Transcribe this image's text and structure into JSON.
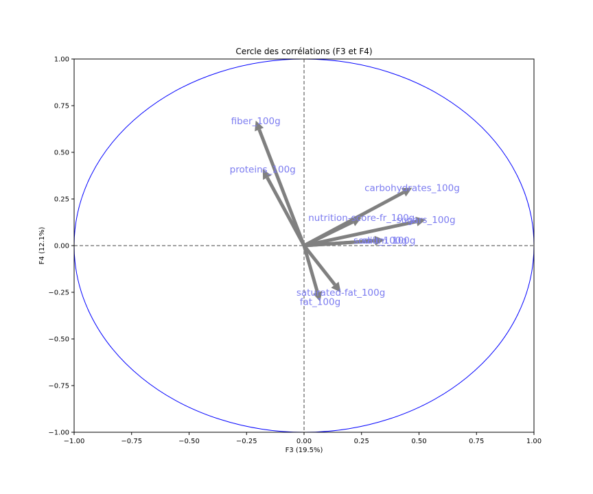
{
  "chart_data": {
    "type": "scatter",
    "title": "Cercle des corrélations (F3 et F4)",
    "xlabel": "F3 (19.5%)",
    "ylabel": "F4 (12.1%)",
    "xlim": [
      -1.0,
      1.0
    ],
    "ylim": [
      -1.0,
      1.0
    ],
    "xticks": [
      "−1.00",
      "−0.75",
      "−0.50",
      "−0.25",
      "0.00",
      "0.25",
      "0.50",
      "0.75",
      "1.00"
    ],
    "yticks": [
      "1.00",
      "0.75",
      "0.50",
      "0.25",
      "0.00",
      "−0.25",
      "−0.50",
      "−0.75",
      "−1.00"
    ],
    "xtick_values": [
      -1.0,
      -0.75,
      -0.5,
      -0.25,
      0.0,
      0.25,
      0.5,
      0.75,
      1.0
    ],
    "ytick_values": [
      1.0,
      0.75,
      0.5,
      0.25,
      0.0,
      -0.25,
      -0.5,
      -0.75,
      -1.0
    ],
    "grid": false,
    "unit_circle": true,
    "reference_lines": [
      0,
      0
    ],
    "variables": [
      {
        "name": "fiber_100g",
        "x": -0.21,
        "y": 0.67
      },
      {
        "name": "proteins_100g",
        "x": -0.18,
        "y": 0.41
      },
      {
        "name": "carbohydrates_100g",
        "x": 0.47,
        "y": 0.31
      },
      {
        "name": "nutrition-score-fr_100g",
        "x": 0.25,
        "y": 0.15
      },
      {
        "name": "sugars_100g",
        "x": 0.53,
        "y": 0.14
      },
      {
        "name": "salt_100g",
        "x": 0.35,
        "y": 0.03
      },
      {
        "name": "sodium_100g",
        "x": 0.35,
        "y": 0.03
      },
      {
        "name": "saturated-fat_100g",
        "x": 0.16,
        "y": -0.25
      },
      {
        "name": "fat_100g",
        "x": 0.07,
        "y": -0.3
      }
    ],
    "colors": {
      "arrow": "#808080",
      "label": "#7b7bf0",
      "circle": "#0000ff",
      "reference_line": "#808080"
    }
  }
}
